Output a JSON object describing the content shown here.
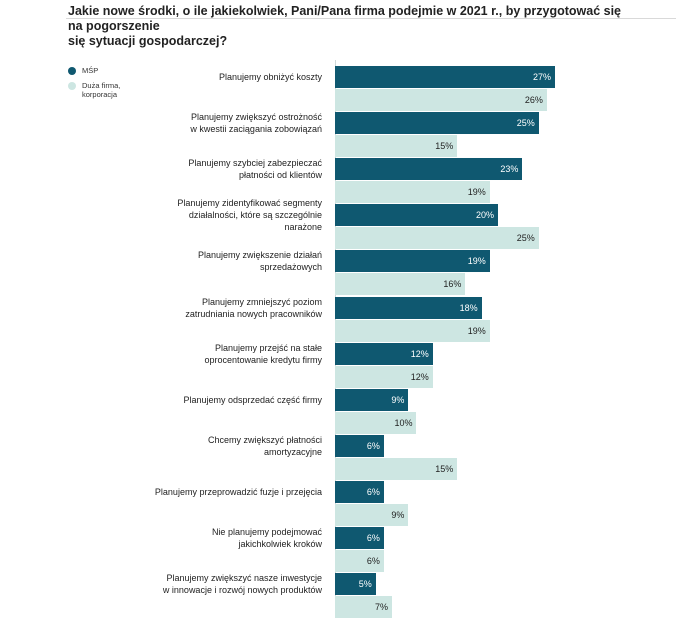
{
  "title": "Jakie nowe środki, o ile jakiekolwiek, Pani/Pana firma podejmie w 2021 r., by przygotować się na pogorszenie\nsię sytuacji gospodarczej?",
  "legend": [
    {
      "label": "MŚP",
      "color": "#0f5870"
    },
    {
      "label": "Duża firma,\nkorporacja",
      "color": "#cde6e2"
    }
  ],
  "chart_data": {
    "type": "bar",
    "orientation": "horizontal",
    "categories": [
      "Planujemy obniżyć koszty",
      "Planujemy zwiększyć ostrożność\nw kwestii zaciągania zobowiązań",
      "Planujemy szybciej zabezpieczać\npłatności od klientów",
      "Planujemy zidentyfikować segmenty\ndziałalności, które są szczególnie\nnarażone",
      "Planujemy zwiększenie działań\nsprzedażowych",
      "Planujemy zmniejszyć poziom\nzatrudniania nowych pracowników",
      "Planujemy przejść na stałe\noprocentowanie kredytu firmy",
      "Planujemy odsprzedać część firmy",
      "Chcemy zwiększyć płatności\namortyzacyjne",
      "Planujemy przeprowadzić fuzje i przejęcia",
      "Nie planujemy podejmować\njakichkolwiek kroków",
      "Planujemy zwiększyć nasze inwestycje\nw innowacje i rozwój nowych produktów"
    ],
    "series": [
      {
        "name": "MŚP",
        "color": "#0f5870",
        "values": [
          27,
          25,
          23,
          20,
          19,
          18,
          12,
          9,
          6,
          6,
          6,
          5
        ],
        "labels": [
          "27%",
          "25%",
          "23%",
          "20%",
          "19%",
          "18%",
          "12%",
          "9%",
          "6%",
          "6%",
          "6%",
          "5%"
        ]
      },
      {
        "name": "Duża firma, korporacja",
        "color": "#cde6e2",
        "values": [
          26,
          15,
          19,
          25,
          16,
          19,
          12,
          10,
          15,
          9,
          6,
          7
        ],
        "labels": [
          "26%",
          "15%",
          "19%",
          "25%",
          "16%",
          "19%",
          "12%",
          "10%",
          "15%",
          "9%",
          "6%",
          "7%"
        ]
      }
    ],
    "xlim": [
      0,
      27
    ],
    "grid": false,
    "legend_position": "top-left",
    "value_suffix": "%"
  }
}
